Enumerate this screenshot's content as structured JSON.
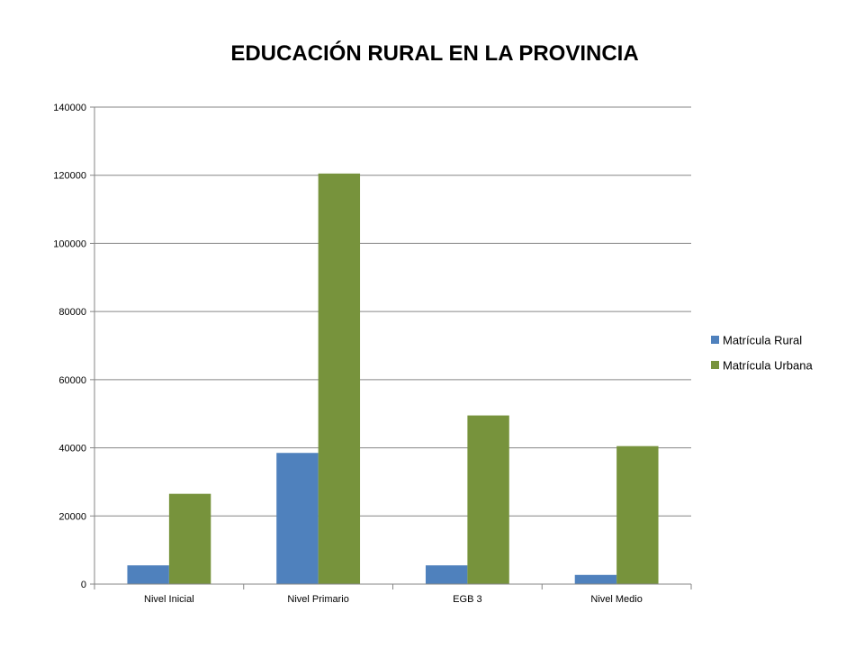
{
  "chart_data": {
    "type": "bar",
    "title": "EDUCACIÓN RURAL EN LA PROVINCIA",
    "xlabel": "",
    "ylabel": "",
    "categories": [
      "Nivel Inicial",
      "Nivel Primario",
      "EGB 3",
      "Nivel Medio"
    ],
    "series": [
      {
        "name": "Matrícula Rural",
        "color": "#4F81BD",
        "values": [
          5500,
          38500,
          5500,
          2700
        ]
      },
      {
        "name": "Matrícula Urbana",
        "color": "#77933C",
        "values": [
          26500,
          120500,
          49500,
          40500
        ]
      }
    ],
    "ylim": [
      0,
      140000
    ],
    "yticks": [
      "0",
      "20000",
      "40000",
      "60000",
      "80000",
      "100000",
      "120000",
      "140000"
    ],
    "grid": true,
    "legend_position": "right"
  }
}
